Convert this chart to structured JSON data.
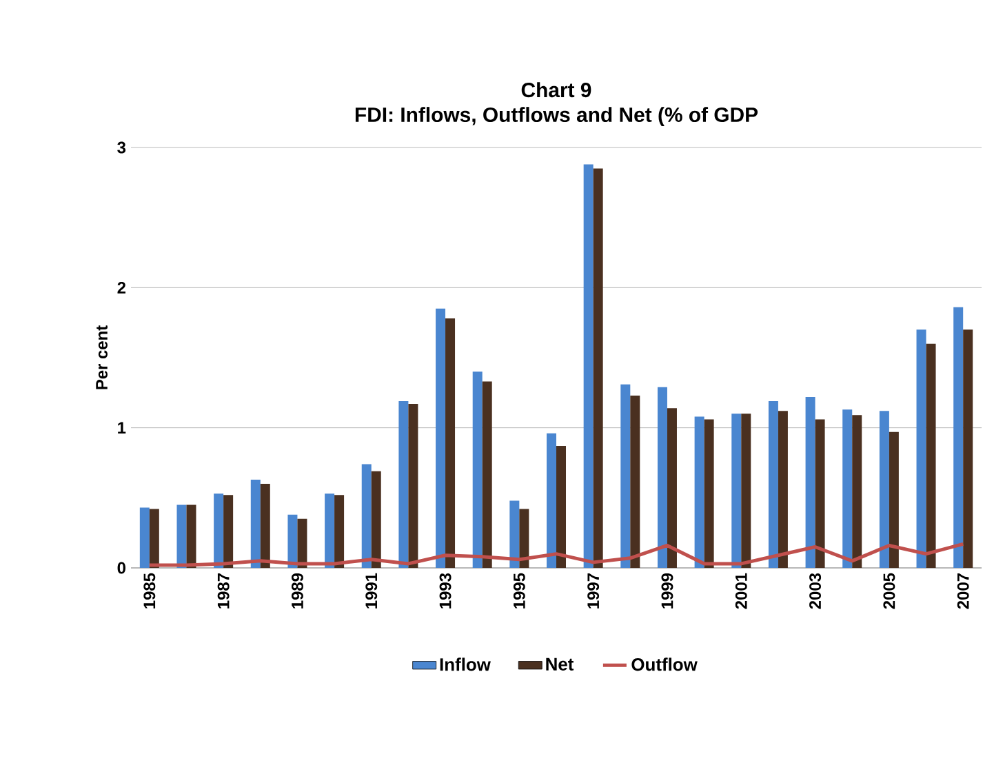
{
  "chart_data": {
    "type": "bar",
    "title": "Chart  9",
    "subtitle": "FDI: Inflows, Outflows and Net (% of GDP",
    "ylabel": "Per cent",
    "categories": [
      "1985",
      null,
      "1987",
      null,
      "1989",
      null,
      "1991",
      null,
      "1993",
      null,
      "1995",
      null,
      "1997",
      null,
      "1999",
      null,
      "2001",
      null,
      "2003",
      null,
      "2005",
      null,
      "2007"
    ],
    "series": [
      {
        "name": "Inflow",
        "color": "#4a86d0",
        "values": [
          0.43,
          0.45,
          0.53,
          0.63,
          0.38,
          0.53,
          0.74,
          1.19,
          1.85,
          1.4,
          0.48,
          0.96,
          2.88,
          1.31,
          1.29,
          1.08,
          1.1,
          1.19,
          1.22,
          1.13,
          1.12,
          1.7,
          1.86
        ]
      },
      {
        "name": "Net",
        "color": "#4a3020",
        "values": [
          0.42,
          0.45,
          0.52,
          0.6,
          0.35,
          0.52,
          0.69,
          1.17,
          1.78,
          1.33,
          0.42,
          0.87,
          2.85,
          1.23,
          1.14,
          1.06,
          1.1,
          1.12,
          1.06,
          1.09,
          0.97,
          1.6,
          1.7
        ]
      },
      {
        "name": "Outflow",
        "type": "line",
        "color": "#c0504d",
        "values": [
          0.02,
          0.02,
          0.03,
          0.05,
          0.03,
          0.03,
          0.06,
          0.03,
          0.09,
          0.08,
          0.06,
          0.1,
          0.04,
          0.07,
          0.16,
          0.03,
          0.03,
          0.09,
          0.15,
          0.05,
          0.16,
          0.1,
          0.17
        ]
      }
    ],
    "ylim": [
      0,
      3
    ],
    "yticks": [
      0,
      1,
      2,
      3
    ],
    "grid": "y",
    "legend": "bottom"
  }
}
